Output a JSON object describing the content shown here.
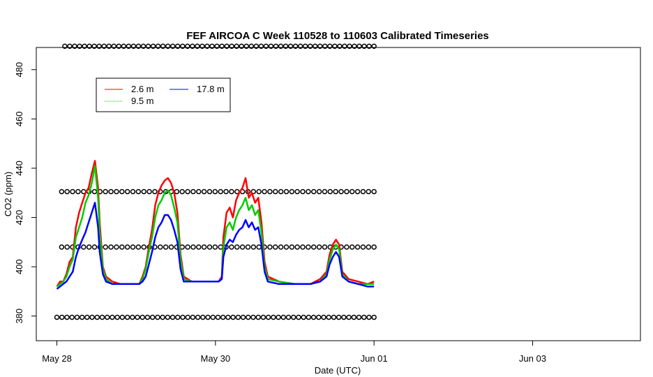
{
  "chart_data": {
    "type": "line",
    "title": "FEF AIRCOA C  Week 110528 to 110603  Calibrated Timeseries",
    "xlabel": "Date (UTC)",
    "ylabel": "CO2 (ppm)",
    "xlim_days": [
      -0.13,
      3.68
    ],
    "x_start_label": "May 28",
    "ylim": [
      370,
      489
    ],
    "x_ticks": [
      {
        "day": 0,
        "label": "May 28"
      },
      {
        "day": 1,
        "label": "May 30"
      },
      {
        "day": 2,
        "label": "Jun 01"
      },
      {
        "day": 3,
        "label": "Jun 03"
      }
    ],
    "y_ticks": [
      {
        "value": 380,
        "label": "380"
      },
      {
        "value": 400,
        "label": "400"
      },
      {
        "value": 420,
        "label": "420"
      },
      {
        "value": 440,
        "label": "440"
      },
      {
        "value": 460,
        "label": "460"
      },
      {
        "value": 480,
        "label": "480"
      }
    ],
    "legend": {
      "position": "top-left",
      "entries": [
        {
          "name": "2.6 m",
          "color": "#ff0000"
        },
        {
          "name": "9.5 m",
          "color": "#00cc00"
        },
        {
          "name": "17.8 m",
          "color": "#0000ff"
        }
      ]
    },
    "series": [
      {
        "name": "2.6 m",
        "color": "#ff0000",
        "points": [
          [
            0,
            392
          ],
          [
            0.02,
            394
          ],
          [
            0.04,
            394
          ],
          [
            0.06,
            397
          ],
          [
            0.08,
            402
          ],
          [
            0.1,
            404
          ],
          [
            0.12,
            416
          ],
          [
            0.14,
            422
          ],
          [
            0.16,
            426
          ],
          [
            0.18,
            430
          ],
          [
            0.2,
            432
          ],
          [
            0.22,
            438
          ],
          [
            0.24,
            443
          ],
          [
            0.26,
            432
          ],
          [
            0.27,
            418
          ],
          [
            0.29,
            400
          ],
          [
            0.31,
            396
          ],
          [
            0.35,
            394
          ],
          [
            0.4,
            393
          ],
          [
            0.5,
            393
          ],
          [
            0.52,
            393
          ],
          [
            0.54,
            396
          ],
          [
            0.56,
            400
          ],
          [
            0.58,
            408
          ],
          [
            0.6,
            415
          ],
          [
            0.62,
            425
          ],
          [
            0.64,
            430
          ],
          [
            0.66,
            433
          ],
          [
            0.68,
            435
          ],
          [
            0.7,
            436
          ],
          [
            0.72,
            434
          ],
          [
            0.74,
            430
          ],
          [
            0.76,
            422
          ],
          [
            0.78,
            405
          ],
          [
            0.8,
            396
          ],
          [
            0.85,
            394
          ],
          [
            0.95,
            394
          ],
          [
            1.02,
            394
          ],
          [
            1.04,
            396
          ],
          [
            1.05,
            412
          ],
          [
            1.07,
            422
          ],
          [
            1.09,
            424
          ],
          [
            1.11,
            420
          ],
          [
            1.13,
            427
          ],
          [
            1.15,
            430
          ],
          [
            1.17,
            432
          ],
          [
            1.19,
            436
          ],
          [
            1.21,
            428
          ],
          [
            1.23,
            430
          ],
          [
            1.25,
            426
          ],
          [
            1.27,
            428
          ],
          [
            1.29,
            418
          ],
          [
            1.31,
            402
          ],
          [
            1.33,
            396
          ],
          [
            1.4,
            394
          ],
          [
            1.5,
            393
          ],
          [
            1.6,
            393
          ],
          [
            1.66,
            395
          ],
          [
            1.7,
            398
          ],
          [
            1.72,
            405
          ],
          [
            1.74,
            409
          ],
          [
            1.76,
            411
          ],
          [
            1.78,
            409
          ],
          [
            1.8,
            398
          ],
          [
            1.84,
            395
          ],
          [
            1.9,
            394
          ],
          [
            1.96,
            393
          ],
          [
            2.0,
            394
          ]
        ]
      },
      {
        "name": "9.5 m",
        "color": "#00cc00",
        "points": [
          [
            0,
            392
          ],
          [
            0.02,
            393
          ],
          [
            0.04,
            394
          ],
          [
            0.06,
            396
          ],
          [
            0.08,
            400
          ],
          [
            0.1,
            403
          ],
          [
            0.12,
            412
          ],
          [
            0.14,
            416
          ],
          [
            0.16,
            420
          ],
          [
            0.18,
            426
          ],
          [
            0.2,
            429
          ],
          [
            0.22,
            434
          ],
          [
            0.24,
            441
          ],
          [
            0.26,
            428
          ],
          [
            0.27,
            414
          ],
          [
            0.29,
            399
          ],
          [
            0.31,
            395
          ],
          [
            0.35,
            393
          ],
          [
            0.4,
            393
          ],
          [
            0.5,
            393
          ],
          [
            0.52,
            393
          ],
          [
            0.54,
            395
          ],
          [
            0.56,
            399
          ],
          [
            0.58,
            406
          ],
          [
            0.6,
            412
          ],
          [
            0.62,
            420
          ],
          [
            0.64,
            425
          ],
          [
            0.66,
            427
          ],
          [
            0.68,
            430
          ],
          [
            0.7,
            431
          ],
          [
            0.72,
            429
          ],
          [
            0.74,
            424
          ],
          [
            0.76,
            418
          ],
          [
            0.78,
            403
          ],
          [
            0.8,
            395
          ],
          [
            0.85,
            394
          ],
          [
            0.95,
            394
          ],
          [
            1.02,
            394
          ],
          [
            1.04,
            395
          ],
          [
            1.05,
            408
          ],
          [
            1.07,
            416
          ],
          [
            1.09,
            418
          ],
          [
            1.11,
            415
          ],
          [
            1.13,
            420
          ],
          [
            1.15,
            423
          ],
          [
            1.17,
            425
          ],
          [
            1.19,
            428
          ],
          [
            1.21,
            423
          ],
          [
            1.23,
            425
          ],
          [
            1.25,
            421
          ],
          [
            1.27,
            423
          ],
          [
            1.29,
            414
          ],
          [
            1.31,
            400
          ],
          [
            1.33,
            395
          ],
          [
            1.4,
            394
          ],
          [
            1.5,
            393
          ],
          [
            1.6,
            393
          ],
          [
            1.66,
            394
          ],
          [
            1.7,
            397
          ],
          [
            1.72,
            403
          ],
          [
            1.74,
            407
          ],
          [
            1.76,
            409
          ],
          [
            1.78,
            407
          ],
          [
            1.8,
            397
          ],
          [
            1.84,
            394
          ],
          [
            1.9,
            393
          ],
          [
            1.96,
            393
          ],
          [
            2.0,
            393
          ]
        ]
      },
      {
        "name": "17.8 m",
        "color": "#0000ff",
        "points": [
          [
            0,
            391
          ],
          [
            0.02,
            392
          ],
          [
            0.04,
            393
          ],
          [
            0.06,
            394
          ],
          [
            0.08,
            396
          ],
          [
            0.1,
            398
          ],
          [
            0.12,
            404
          ],
          [
            0.14,
            408
          ],
          [
            0.16,
            411
          ],
          [
            0.18,
            414
          ],
          [
            0.2,
            418
          ],
          [
            0.22,
            422
          ],
          [
            0.24,
            426
          ],
          [
            0.26,
            416
          ],
          [
            0.27,
            406
          ],
          [
            0.29,
            397
          ],
          [
            0.31,
            394
          ],
          [
            0.35,
            393
          ],
          [
            0.4,
            393
          ],
          [
            0.5,
            393
          ],
          [
            0.52,
            393
          ],
          [
            0.54,
            394
          ],
          [
            0.56,
            396
          ],
          [
            0.58,
            401
          ],
          [
            0.6,
            406
          ],
          [
            0.62,
            412
          ],
          [
            0.64,
            416
          ],
          [
            0.66,
            418
          ],
          [
            0.68,
            421
          ],
          [
            0.7,
            421
          ],
          [
            0.72,
            419
          ],
          [
            0.74,
            415
          ],
          [
            0.76,
            410
          ],
          [
            0.78,
            399
          ],
          [
            0.8,
            394
          ],
          [
            0.85,
            394
          ],
          [
            0.95,
            394
          ],
          [
            1.02,
            394
          ],
          [
            1.04,
            395
          ],
          [
            1.05,
            404
          ],
          [
            1.07,
            409
          ],
          [
            1.09,
            411
          ],
          [
            1.11,
            410
          ],
          [
            1.13,
            413
          ],
          [
            1.15,
            415
          ],
          [
            1.17,
            416
          ],
          [
            1.19,
            419
          ],
          [
            1.21,
            416
          ],
          [
            1.23,
            418
          ],
          [
            1.25,
            415
          ],
          [
            1.27,
            416
          ],
          [
            1.29,
            409
          ],
          [
            1.31,
            398
          ],
          [
            1.33,
            394
          ],
          [
            1.4,
            393
          ],
          [
            1.5,
            393
          ],
          [
            1.6,
            393
          ],
          [
            1.66,
            394
          ],
          [
            1.7,
            396
          ],
          [
            1.72,
            401
          ],
          [
            1.74,
            404
          ],
          [
            1.76,
            406
          ],
          [
            1.78,
            404
          ],
          [
            1.8,
            396
          ],
          [
            1.84,
            394
          ],
          [
            1.9,
            393
          ],
          [
            1.96,
            392
          ],
          [
            2.0,
            392
          ]
        ]
      }
    ],
    "marker_rows": [
      {
        "y": 379.5,
        "x_start": 0.0,
        "x_end": 2.0,
        "count": 64
      },
      {
        "y": 408,
        "x_start": 0.03,
        "x_end": 2.0,
        "count": 58
      },
      {
        "y": 430.5,
        "x_start": 0.03,
        "x_end": 2.0,
        "count": 58
      },
      {
        "y": 489.5,
        "x_start": 0.05,
        "x_end": 2.0,
        "count": 64
      }
    ],
    "grid": false
  }
}
